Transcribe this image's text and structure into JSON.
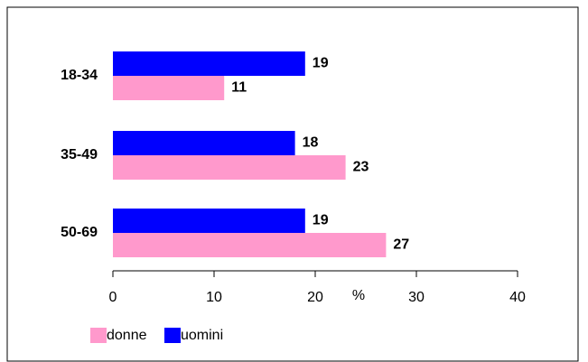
{
  "chart_data": {
    "type": "bar",
    "orientation": "horizontal",
    "categories": [
      "18-34",
      "35-49",
      "50-69"
    ],
    "series": [
      {
        "name": "donne",
        "color": "#ff99cc",
        "values": [
          11,
          23,
          27
        ]
      },
      {
        "name": "uomini",
        "color": "#0000ff",
        "values": [
          19,
          18,
          19
        ]
      }
    ],
    "x_label": "%",
    "xlim": [
      0,
      40
    ],
    "xticks": [
      0,
      10,
      20,
      30,
      40
    ],
    "legend": "bottom-left",
    "grid": false
  }
}
